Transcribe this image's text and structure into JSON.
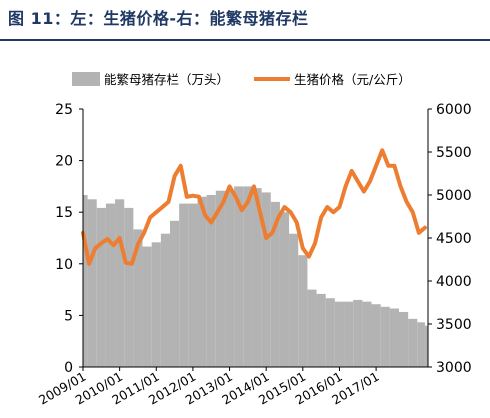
{
  "figure": {
    "caption": "图 11：左：生猪价格-右：能繁母猪存栏"
  },
  "chart_data": {
    "type": "bar+line",
    "title": "",
    "legend": {
      "placement": "top",
      "entries": [
        {
          "series": "sows",
          "label": "能繁母猪存栏（万头）",
          "color": "#b3b3b3",
          "kind": "area"
        },
        {
          "series": "price",
          "label": "生猪价格（元/公斤）",
          "color": "#ed7d31",
          "kind": "line"
        }
      ]
    },
    "left_axis": {
      "min": 0,
      "max": 25,
      "ticks": [
        "0",
        "5",
        "10",
        "15",
        "20",
        "25"
      ]
    },
    "right_axis": {
      "min": 3000,
      "max": 6000,
      "ticks": [
        "3000",
        "3500",
        "4000",
        "4500",
        "5000",
        "5500",
        "6000"
      ]
    },
    "x_axis": {
      "start": "2009/01",
      "end": "2018/06",
      "tick_labels": [
        "2009/01",
        "2010/01",
        "2011/01",
        "2012/01",
        "2013/01",
        "2014/01",
        "2015/01",
        "2016/01",
        "2017/01"
      ]
    },
    "note": "Pixel readings: the orange line sits against the left axis (0–25) and the gray fill sits against the right axis (3000–6000).",
    "series": [
      {
        "name": "生猪价格（元/公斤）",
        "key": "price",
        "axis": "left",
        "x": [
          "2009/01",
          "2009/03",
          "2009/05",
          "2009/07",
          "2009/09",
          "2009/11",
          "2010/01",
          "2010/03",
          "2010/05",
          "2010/07",
          "2010/09",
          "2010/11",
          "2011/01",
          "2011/03",
          "2011/05",
          "2011/07",
          "2011/09",
          "2011/11",
          "2012/01",
          "2012/03",
          "2012/05",
          "2012/07",
          "2012/09",
          "2012/11",
          "2013/01",
          "2013/03",
          "2013/05",
          "2013/07",
          "2013/09",
          "2013/11",
          "2014/01",
          "2014/03",
          "2014/05",
          "2014/07",
          "2014/09",
          "2014/11",
          "2015/01",
          "2015/03",
          "2015/05",
          "2015/07",
          "2015/09",
          "2015/11",
          "2016/01",
          "2016/03",
          "2016/05",
          "2016/07",
          "2016/09",
          "2016/11",
          "2017/01",
          "2017/03",
          "2017/05",
          "2017/07",
          "2017/09",
          "2017/11",
          "2018/01",
          "2018/03",
          "2018/05"
        ],
        "values": [
          13.0,
          10.0,
          11.5,
          12.0,
          12.4,
          11.8,
          12.5,
          10.1,
          10.0,
          11.9,
          13.0,
          14.5,
          15.0,
          15.5,
          16.0,
          18.5,
          19.5,
          16.5,
          16.6,
          16.5,
          14.7,
          14.0,
          15.0,
          16.0,
          17.5,
          16.5,
          15.2,
          16.0,
          17.5,
          15.0,
          12.5,
          13.0,
          14.5,
          15.5,
          15.0,
          14.0,
          11.5,
          10.7,
          12.0,
          14.5,
          15.5,
          15.0,
          15.5,
          17.5,
          19.0,
          18.0,
          17.0,
          18.0,
          19.5,
          21.0,
          19.5,
          19.5,
          17.5,
          16.0,
          15.0,
          13.0,
          13.5
        ]
      },
      {
        "name": "能繁母猪存栏（万头）",
        "key": "sows",
        "axis": "right",
        "x": [
          "2009/01",
          "2009/04",
          "2009/07",
          "2009/10",
          "2010/01",
          "2010/04",
          "2010/07",
          "2010/10",
          "2011/01",
          "2011/04",
          "2011/07",
          "2011/10",
          "2012/01",
          "2012/04",
          "2012/07",
          "2012/10",
          "2013/01",
          "2013/04",
          "2013/07",
          "2013/10",
          "2014/01",
          "2014/04",
          "2014/07",
          "2014/10",
          "2015/01",
          "2015/04",
          "2015/07",
          "2015/10",
          "2016/01",
          "2016/04",
          "2016/07",
          "2016/10",
          "2017/01",
          "2017/04",
          "2017/07",
          "2017/10",
          "2018/01",
          "2018/04",
          "2018/06"
        ],
        "values": [
          5000,
          4950,
          4850,
          4900,
          4950,
          4850,
          4600,
          4400,
          4450,
          4550,
          4700,
          4900,
          4900,
          4980,
          5000,
          5050,
          5050,
          5100,
          5100,
          5080,
          5030,
          4920,
          4800,
          4550,
          4300,
          3900,
          3850,
          3800,
          3760,
          3760,
          3780,
          3760,
          3730,
          3700,
          3680,
          3640,
          3560,
          3520,
          3480
        ]
      }
    ]
  }
}
